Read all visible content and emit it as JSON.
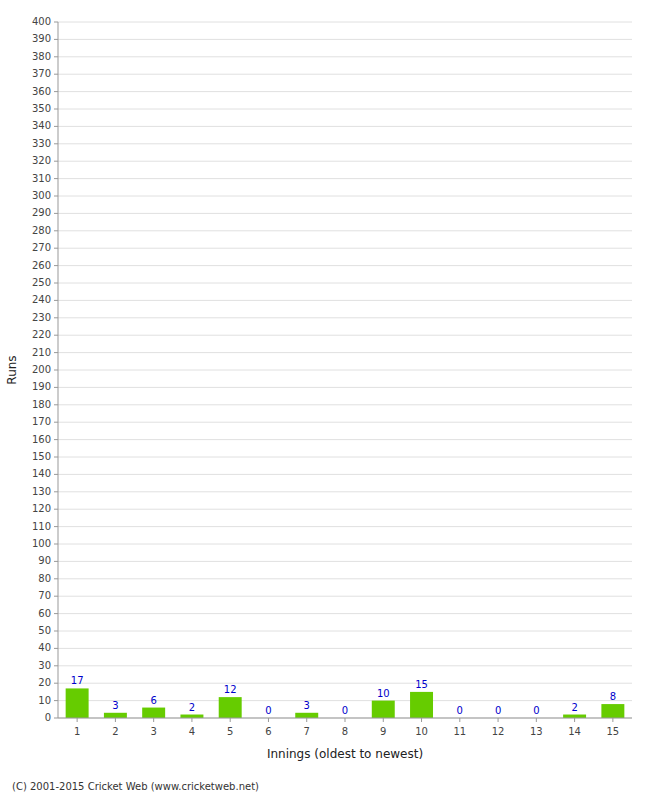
{
  "chart_data": {
    "type": "bar",
    "xlabel": "Innings (oldest to newest)",
    "ylabel": "Runs",
    "categories": [
      1,
      2,
      3,
      4,
      5,
      6,
      7,
      8,
      9,
      10,
      11,
      12,
      13,
      14,
      15
    ],
    "values": [
      17,
      3,
      6,
      2,
      12,
      0,
      3,
      0,
      10,
      15,
      0,
      0,
      0,
      2,
      8
    ],
    "color": "#66cc00",
    "ylim": [
      0,
      400
    ],
    "yticks": [
      0,
      10,
      20,
      30,
      40,
      50,
      60,
      70,
      80,
      90,
      100,
      110,
      120,
      130,
      140,
      150,
      160,
      170,
      180,
      190,
      200,
      210,
      220,
      230,
      240,
      250,
      260,
      270,
      280,
      290,
      300,
      310,
      320,
      330,
      340,
      350,
      360,
      370,
      380,
      390,
      400
    ],
    "grid": true,
    "data_labels": true,
    "annotations": [
      "(C) 2001-2015 Cricket Web (www.cricketweb.net)"
    ]
  }
}
